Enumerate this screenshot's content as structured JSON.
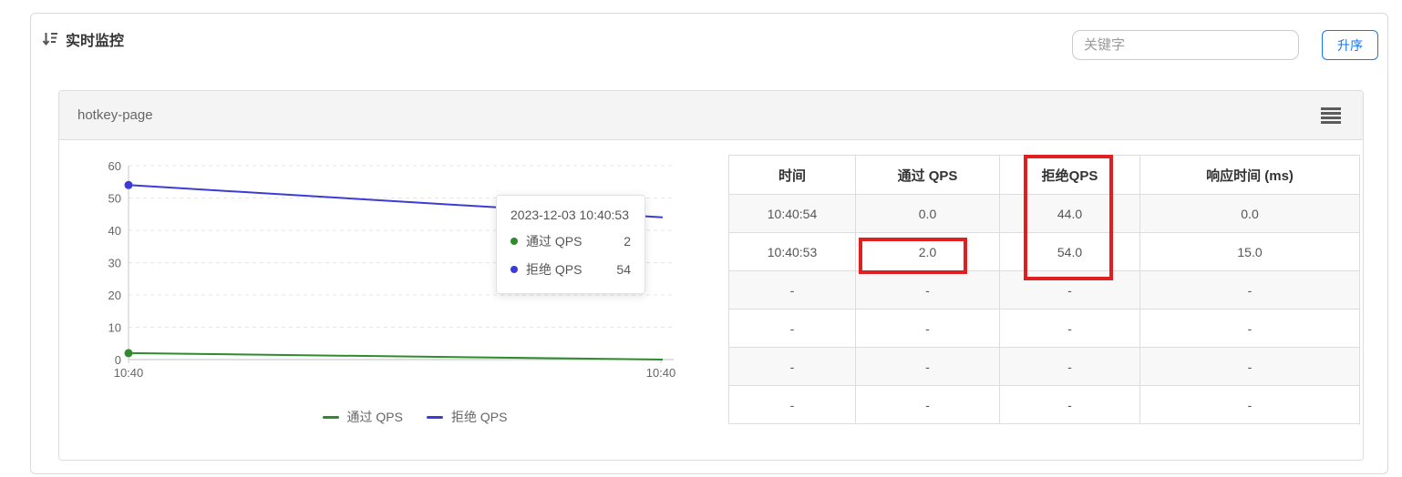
{
  "header": {
    "title": "实时监控",
    "search_placeholder": "关键字",
    "sort_button_label": "升序",
    "accent_color": "#1678f2"
  },
  "panel": {
    "title": "hotkey-page"
  },
  "chart_data": {
    "type": "line",
    "x": [
      "10:40:53",
      "10:40:54"
    ],
    "x_tick_labels": [
      "10:40",
      "10:40"
    ],
    "yticks": [
      0,
      10,
      20,
      30,
      40,
      50,
      60
    ],
    "ylim": [
      0,
      60
    ],
    "grid": "horizontal dashed",
    "legend_position": "bottom center",
    "series": [
      {
        "name": "通过 QPS",
        "color": "#2e8b2e",
        "values": [
          2,
          0
        ]
      },
      {
        "name": "拒绝 QPS",
        "color": "#3b3bd8",
        "values": [
          54,
          44
        ]
      }
    ],
    "tooltip": {
      "title": "2023-12-03 10:40:53",
      "rows": [
        {
          "label": "通过 QPS",
          "value": "2",
          "color": "#2e8b2e"
        },
        {
          "label": "拒绝 QPS",
          "value": "54",
          "color": "#3b3bd8"
        }
      ]
    },
    "axis_color": "#c8c8c8",
    "grid_color": "#e5e5e5",
    "tick_label_color": "#666666"
  },
  "table": {
    "headers": [
      "时间",
      "通过 QPS",
      "拒绝QPS",
      "响应时间 (ms)"
    ],
    "rows": [
      [
        "10:40:54",
        "0.0",
        "44.0",
        "0.0"
      ],
      [
        "10:40:53",
        "2.0",
        "54.0",
        "15.0"
      ],
      [
        "-",
        "-",
        "-",
        "-"
      ],
      [
        "-",
        "-",
        "-",
        "-"
      ],
      [
        "-",
        "-",
        "-",
        "-"
      ],
      [
        "-",
        "-",
        "-",
        "-"
      ]
    ]
  },
  "annotations": {
    "color": "#e02020",
    "boxes": [
      {
        "target": "reject-qps column header and first two values"
      },
      {
        "target": "pass-qps value 2.0 cell"
      }
    ]
  }
}
